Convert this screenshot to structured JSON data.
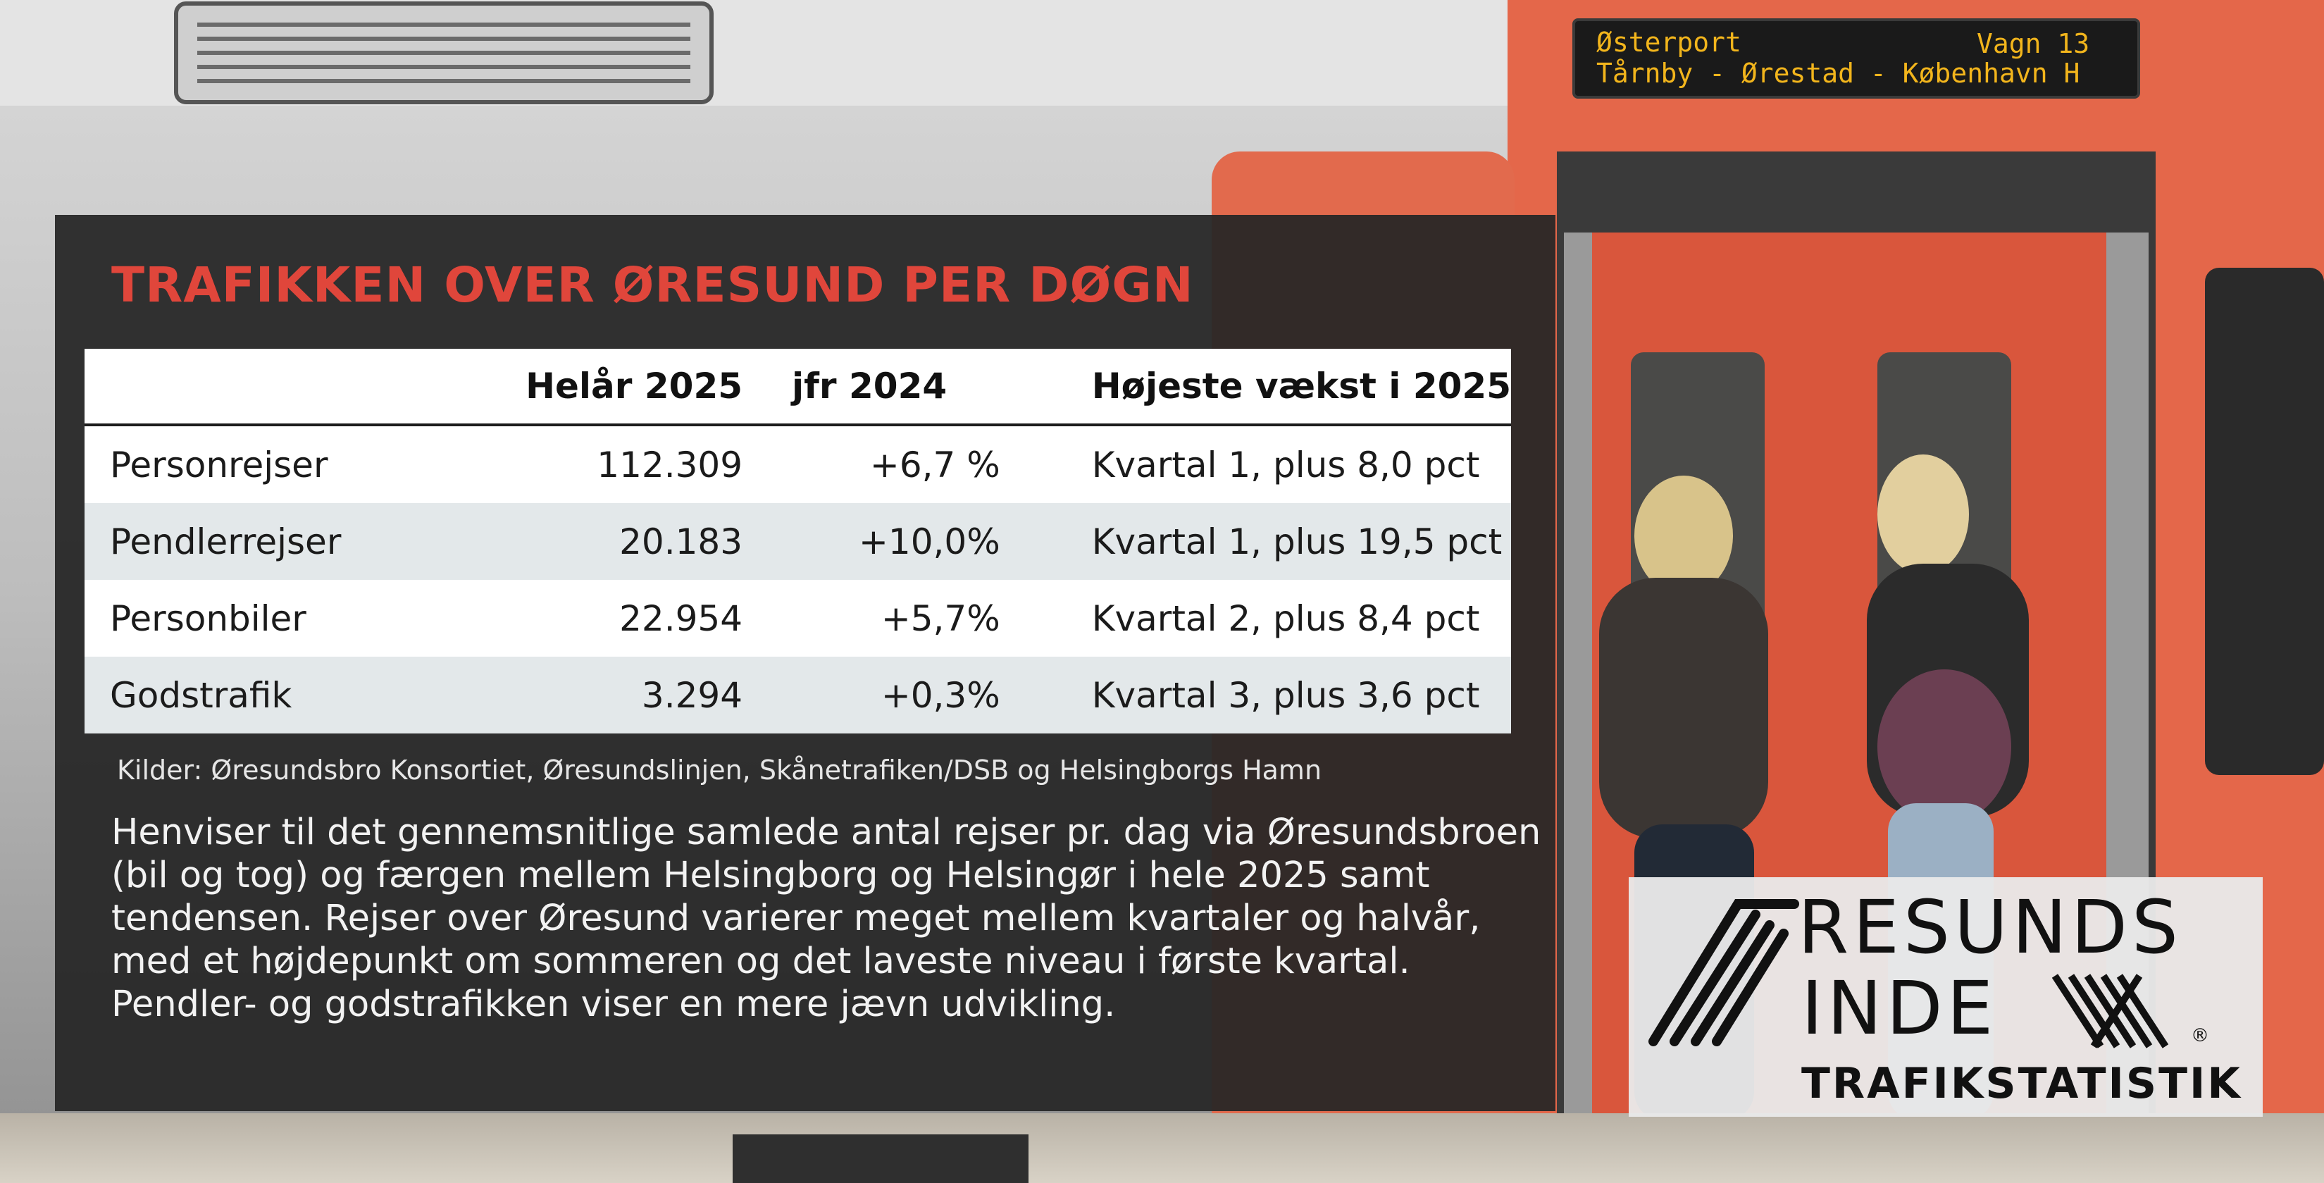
{
  "headline": "TRAFIKKEN OVER ØRESUND PER DØGN",
  "table": {
    "headers": [
      "",
      "Helår 2025",
      "jfr 2024",
      "Højeste vækst i 2025"
    ],
    "rows": [
      [
        "Personrejser",
        "112.309",
        "+6,7 %",
        "Kvartal 1, plus 8,0 pct"
      ],
      [
        "Pendlerrejser",
        "20.183",
        "+10,0%",
        "Kvartal 1, plus 19,5 pct"
      ],
      [
        "Personbiler",
        "22.954",
        "+5,7%",
        "Kvartal 2, plus 8,4 pct"
      ],
      [
        "Godstrafik",
        "3.294",
        "+0,3%",
        "Kvartal 3, plus 3,6 pct"
      ]
    ]
  },
  "source": "Kilder: Øresundsbro Konsortiet, Øresundslinjen, Skånetrafiken/DSB og Helsingborgs Hamn",
  "description": "Henviser til det gennemsnitlige samlede antal rejser pr. dag via Øresunds­broen (bil og tog) og færgen mellem Helsingborg og Helsingør i hele 2025 samt tendensen. Rejser over Øresund varierer meget mellem kvartaler og halvår, med et højdepunkt om sommeren og det laveste niveau i første kvartal. Pendler- og godstrafikken viser en mere jævn udvikling.",
  "logo": {
    "line1": "RESUNDS",
    "line2": "INDE",
    "subtitle": "TRAFIKSTATISTIK",
    "registered": "®"
  },
  "train_sign": {
    "line1": "Østerport",
    "line2": "Tårnby - Ørestad - København H",
    "car": "Vagn 13"
  },
  "colors": {
    "headline": "#e0463b",
    "panel": "#262626",
    "train_orange": "#e8684a",
    "sign_text": "#f2b51c"
  }
}
